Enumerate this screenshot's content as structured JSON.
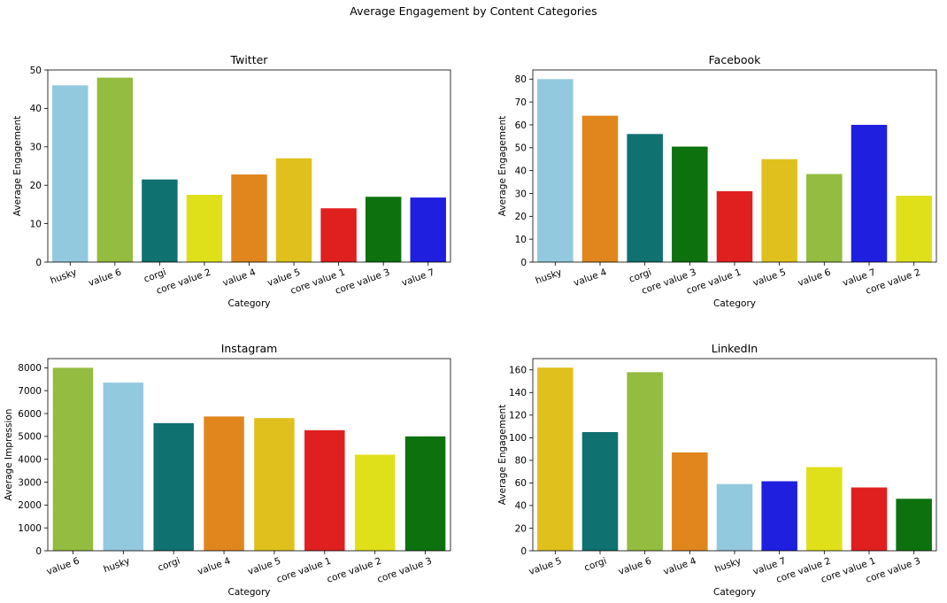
{
  "suptitle": "Average Engagement by Content Categories",
  "chart_data": [
    {
      "type": "bar",
      "title": "Twitter",
      "xlabel": "Category",
      "ylabel": "Average Engagement",
      "ylim": [
        0,
        50
      ],
      "yticks": [
        0,
        10,
        20,
        30,
        40,
        50
      ],
      "categories": [
        "husky",
        "value 6",
        "corgi",
        "core value 2",
        "value 4",
        "value 5",
        "core value 1",
        "core value 3",
        "value 7"
      ],
      "values": [
        46,
        48,
        21.5,
        17.5,
        22.8,
        27,
        14,
        17,
        16.8
      ]
    },
    {
      "type": "bar",
      "title": "Facebook",
      "xlabel": "Category",
      "ylabel": "Average Engagement",
      "ylim": [
        0,
        84
      ],
      "yticks": [
        0,
        10,
        20,
        30,
        40,
        50,
        60,
        70,
        80
      ],
      "categories": [
        "husky",
        "value 4",
        "corgi",
        "core value 3",
        "core value 1",
        "value 5",
        "value 6",
        "value 7",
        "core value 2"
      ],
      "values": [
        80,
        64,
        56,
        50.5,
        31,
        45,
        38.5,
        60,
        29
      ]
    },
    {
      "type": "bar",
      "title": "Instagram",
      "xlabel": "Category",
      "ylabel": "Average Impression",
      "ylim": [
        0,
        8400
      ],
      "yticks": [
        0,
        1000,
        2000,
        3000,
        4000,
        5000,
        6000,
        7000,
        8000
      ],
      "categories": [
        "value 6",
        "husky",
        "corgi",
        "value 4",
        "value 5",
        "core value 1",
        "core value 2",
        "core value 3"
      ],
      "values": [
        8000,
        7350,
        5580,
        5870,
        5800,
        5270,
        4200,
        5000
      ]
    },
    {
      "type": "bar",
      "title": "LinkedIn",
      "xlabel": "Category",
      "ylabel": "Average Engagement",
      "ylim": [
        0,
        170
      ],
      "yticks": [
        0,
        20,
        40,
        60,
        80,
        100,
        120,
        140,
        160
      ],
      "categories": [
        "value 5",
        "corgi",
        "value 6",
        "value 4",
        "husky",
        "value 7",
        "core value 2",
        "core value 1",
        "core value 3"
      ],
      "values": [
        162,
        105,
        158,
        87,
        59,
        61.5,
        74,
        56,
        46
      ]
    }
  ],
  "category_colors": {
    "husky": "#92c9df",
    "value 6": "#94bc40",
    "corgi": "#0f7170",
    "core value 2": "#e0e01a",
    "value 4": "#e0861d",
    "value 5": "#e0c01d",
    "core value 1": "#e01f1f",
    "core value 3": "#0d720d",
    "value 7": "#1f1fe0"
  }
}
